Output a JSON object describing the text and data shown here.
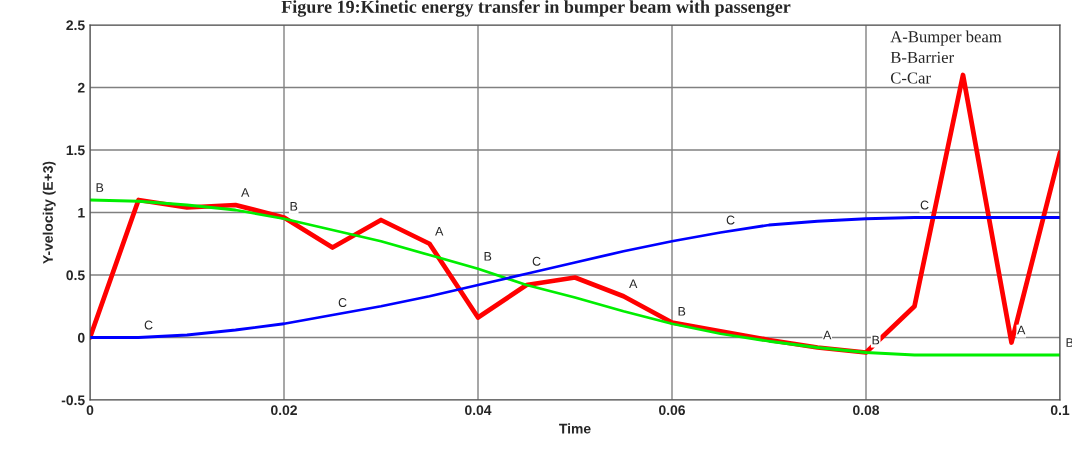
{
  "chart_data": {
    "type": "line",
    "title": "Figure 19:Kinetic energy transfer in bumper beam with passenger",
    "xlabel": "Time",
    "ylabel": "Y-velocity (E+3)",
    "x": [
      0,
      0.005,
      0.01,
      0.015,
      0.02,
      0.025,
      0.03,
      0.035,
      0.04,
      0.045,
      0.05,
      0.055,
      0.06,
      0.065,
      0.07,
      0.075,
      0.08,
      0.085,
      0.09,
      0.095,
      0.1
    ],
    "series": [
      {
        "color": "#ff0000",
        "values": [
          0,
          1.1,
          1.04,
          1.06,
          0.96,
          0.72,
          0.94,
          0.75,
          0.16,
          0.42,
          0.48,
          0.33,
          0.12,
          0.05,
          -0.02,
          -0.08,
          -0.12,
          0.25,
          2.1,
          -0.04,
          1.48
        ]
      },
      {
        "color": "#00ee00",
        "values": [
          1.1,
          1.09,
          1.06,
          1.02,
          0.95,
          0.86,
          0.77,
          0.66,
          0.55,
          0.42,
          0.32,
          0.21,
          0.11,
          0.03,
          -0.03,
          -0.08,
          -0.12,
          -0.14,
          -0.14,
          -0.14,
          -0.14
        ]
      },
      {
        "color": "#0000ff",
        "values": [
          0,
          0,
          0.02,
          0.06,
          0.11,
          0.18,
          0.25,
          0.33,
          0.42,
          0.51,
          0.6,
          0.69,
          0.77,
          0.84,
          0.9,
          0.93,
          0.95,
          0.96,
          0.96,
          0.96,
          0.96
        ]
      }
    ],
    "xlim": [
      0,
      0.1
    ],
    "xticks": [
      0,
      0.02,
      0.04,
      0.06,
      0.08,
      0.1
    ],
    "ylim": [
      -0.5,
      2.5
    ],
    "yticks": [
      -0.5,
      0,
      0.5,
      1,
      1.5,
      2,
      2.5
    ],
    "grid": true,
    "marker": "none",
    "line_style": "solid",
    "annotations": [
      "A-Bumper beam",
      "B-Barrier",
      "C-Car",
      {
        "text": "A",
        "x": 0.015,
        "y": 1.06
      },
      {
        "text": "A",
        "x": 0.035,
        "y": 0.75
      },
      {
        "text": "A",
        "x": 0.055,
        "y": 0.33
      },
      {
        "text": "A",
        "x": 0.075,
        "y": -0.08
      },
      {
        "text": "A",
        "x": 0.095,
        "y": -0.04
      },
      {
        "text": "B",
        "x": 0,
        "y": 1.1
      },
      {
        "text": "B",
        "x": 0.02,
        "y": 0.95
      },
      {
        "text": "B",
        "x": 0.04,
        "y": 0.55
      },
      {
        "text": "B",
        "x": 0.06,
        "y": 0.11
      },
      {
        "text": "B",
        "x": 0.08,
        "y": -0.12
      },
      {
        "text": "B",
        "x": 0.1,
        "y": -0.14
      },
      {
        "text": "C",
        "x": 0.005,
        "y": 0
      },
      {
        "text": "C",
        "x": 0.025,
        "y": 0.18
      },
      {
        "text": "C",
        "x": 0.045,
        "y": 0.51
      },
      {
        "text": "C",
        "x": 0.065,
        "y": 0.84
      },
      {
        "text": "C",
        "x": 0.085,
        "y": 0.96
      }
    ]
  }
}
